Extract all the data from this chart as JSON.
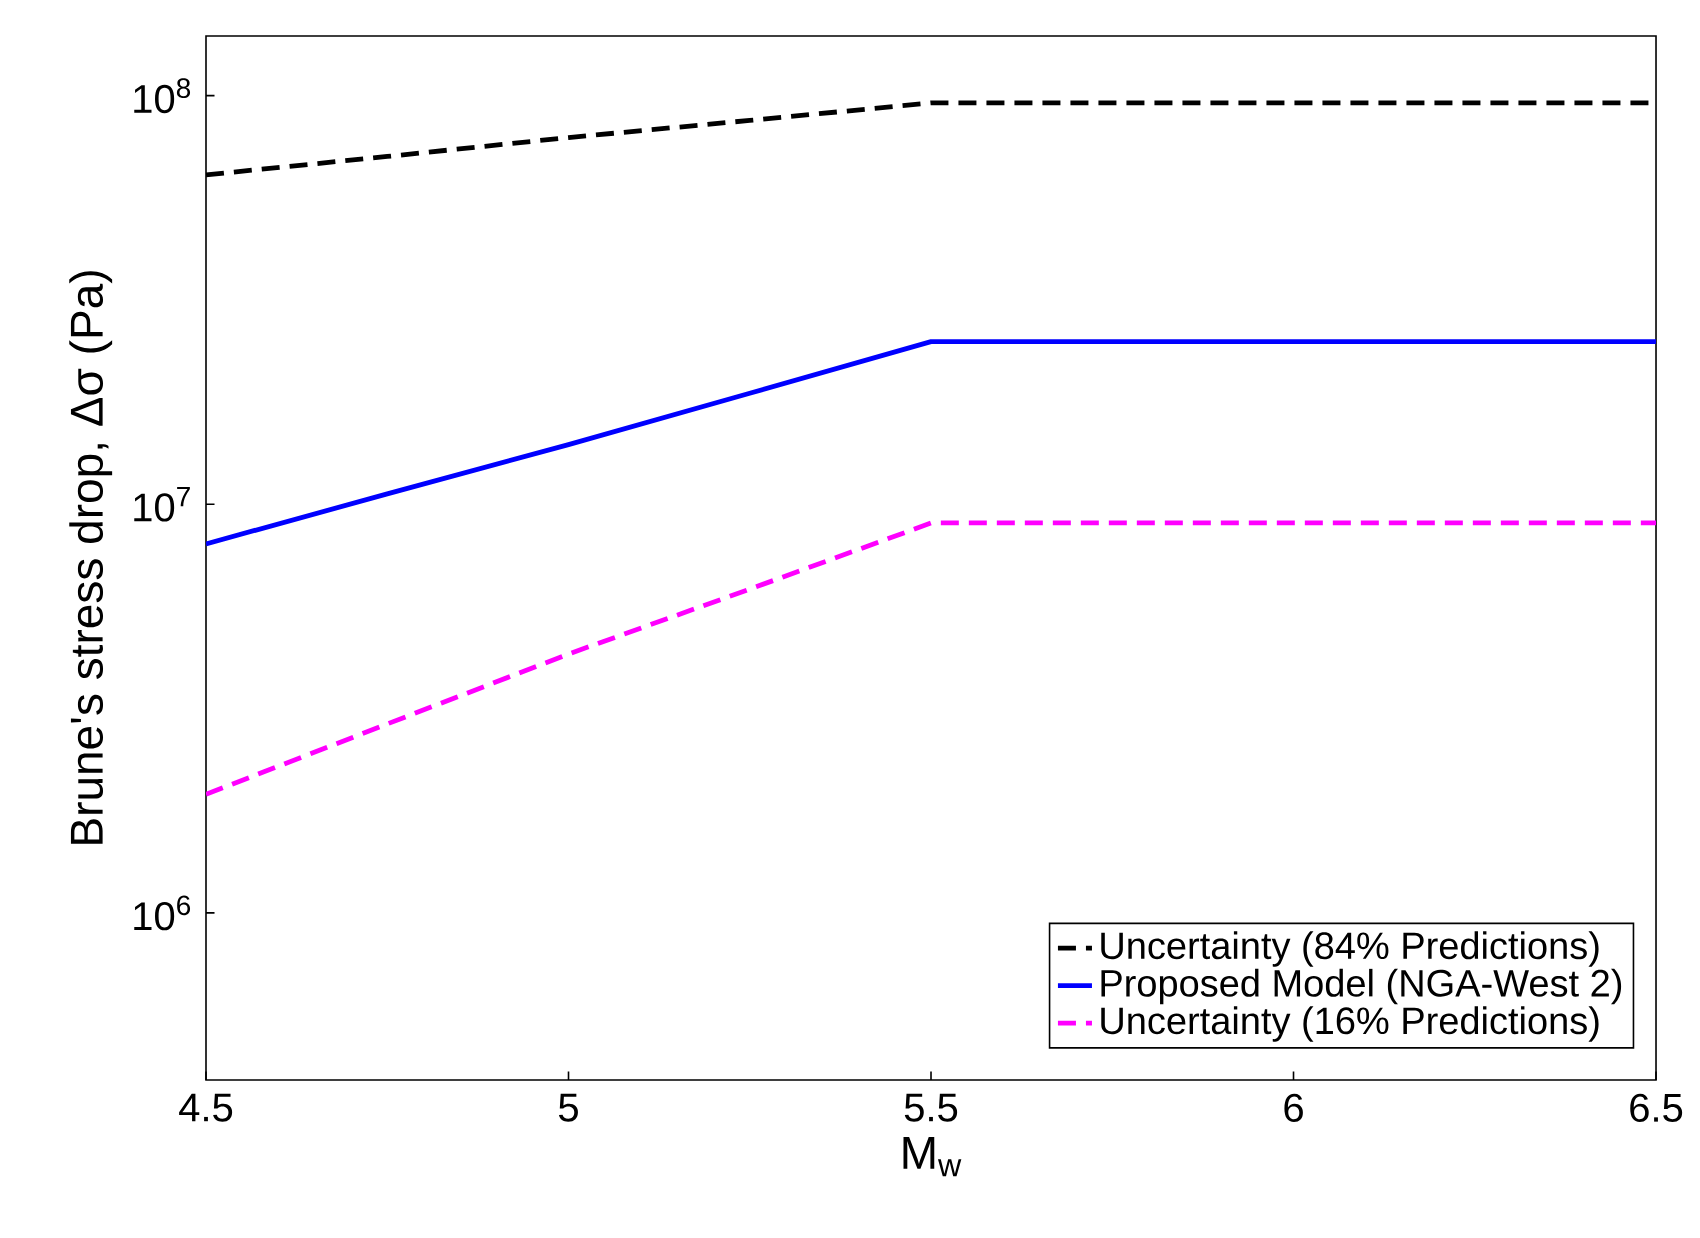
{
  "chart_data": {
    "type": "line",
    "xlabel": "M$_{w}$",
    "ylabel": "Brune's stress drop, Δσ (Pa)",
    "x": [
      4.5,
      4.75,
      5.0,
      5.25,
      5.5,
      6.0,
      6.5
    ],
    "series": [
      {
        "name": "Uncertainty (84% Predictions)",
        "color": "#000000",
        "line_style": "dashed",
        "values": [
          64000000,
          71000000,
          79000000,
          87000000,
          96000000,
          96000000,
          96000000
        ]
      },
      {
        "name": "Proposed Model (NGA-West 2)",
        "color": "#0000ff",
        "line_style": "solid",
        "values": [
          8000000,
          10600000,
          14000000,
          18700000,
          25000000,
          25000000,
          25000000
        ]
      },
      {
        "name": "Uncertainty (16% Predictions)",
        "color": "#ff00ff",
        "line_style": "dashed",
        "values": [
          1950000,
          2900000,
          4300000,
          6200000,
          9000000,
          9000000,
          9000000
        ]
      }
    ],
    "log": "y",
    "grid": false,
    "legend": "bottom right",
    "marker": "none",
    "xlim": [
      4.5,
      6.5
    ],
    "xticks": [
      4.5,
      5,
      5.5,
      6,
      6.5
    ],
    "ylim": [
      390000,
      140000000
    ],
    "yticks": [
      {
        "value": 1000000,
        "label": "10$^{6}$"
      },
      {
        "value": 10000000,
        "label": "10$^{7}$"
      },
      {
        "value": 100000000,
        "label": "10$^{8}$"
      }
    ]
  }
}
